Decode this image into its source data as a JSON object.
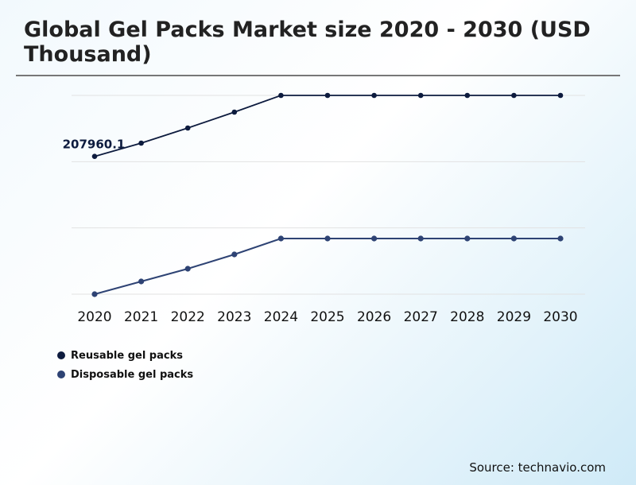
{
  "chart_data": {
    "type": "line",
    "title": "Global Gel Packs Market size 2020 - 2030 (USD Thousand)",
    "x": [
      "2020",
      "2021",
      "2022",
      "2023",
      "2024",
      "2025",
      "2026",
      "2027",
      "2028",
      "2029",
      "2030"
    ],
    "ylim": [
      0,
      300000
    ],
    "grid": true,
    "legend_placement": "bottom-left",
    "series": [
      {
        "name": "Reusable gel packs",
        "color": "#0d1b3e",
        "values": [
          207960.1,
          228000,
          250800,
          274800,
          300000,
          300000,
          300000,
          300000,
          300000,
          300000,
          300000
        ]
      },
      {
        "name": "Disposable gel packs",
        "color": "#2e4374",
        "values": [
          0,
          19200,
          38400,
          60000,
          84000,
          84000,
          84000,
          84000,
          84000,
          84000,
          84000
        ]
      }
    ],
    "annotations": [
      {
        "series": 0,
        "x": "2020",
        "text": "207960.1"
      }
    ]
  },
  "source": "Source: technavio.com"
}
